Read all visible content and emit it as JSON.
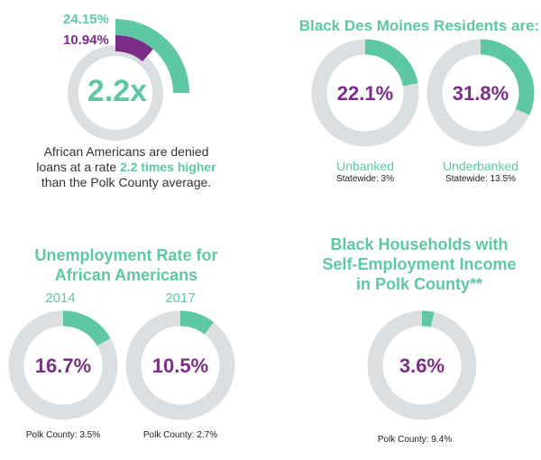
{
  "palette": {
    "green": "#5ec8a5",
    "purple": "#7a2e85",
    "track": "#dcdfe1",
    "text": "#333333"
  },
  "loans": {
    "pct_high": "24.15%",
    "pct_low": "10.94%",
    "ratio": "2.2x",
    "desc_line1": "African Americans are denied",
    "desc_line2_pre": "loans at a rate ",
    "desc_line2_bold": "2.2 times higher",
    "desc_line3": "than the Polk County average."
  },
  "residents": {
    "heading": "Black Des Moines Residents are:",
    "unbanked_label": "Unbanked",
    "unbanked_note": "Statewide: 3%",
    "underbanked_label": "Underbanked",
    "underbanked_note": "Statewide: 13.5%"
  },
  "unemployment": {
    "heading_line1": "Unemployment Rate for",
    "heading_line2": "African Americans",
    "note_2014": "Polk County: 3.5%",
    "note_2017": "Polk County: 2.7%"
  },
  "self_employment": {
    "heading_line1": "Black Households with",
    "heading_line2": "Self-Employment Income",
    "heading_line3": "in Polk County**",
    "note": "Polk County: 9.4%"
  },
  "chart_data": [
    {
      "type": "radial-bar",
      "series": [
        {
          "value": 24.15,
          "label": "24.15%"
        },
        {
          "value": 10.94,
          "label": "10.94%"
        }
      ],
      "center_label": "2.2x"
    },
    {
      "type": "donut",
      "value": 22.1,
      "label": "22.1%",
      "category": "Unbanked",
      "note": "Statewide: 3%"
    },
    {
      "type": "donut",
      "value": 31.8,
      "label": "31.8%",
      "category": "Underbanked",
      "note": "Statewide: 13.5%"
    },
    {
      "type": "donut",
      "value": 16.7,
      "label": "16.7%",
      "category": "2014",
      "note": "Polk County: 3.5%"
    },
    {
      "type": "donut",
      "value": 10.5,
      "label": "10.5%",
      "category": "2017",
      "note": "Polk County: 2.7%"
    },
    {
      "type": "donut",
      "value": 3.6,
      "label": "3.6%",
      "note": "Polk County: 9.4%"
    }
  ]
}
